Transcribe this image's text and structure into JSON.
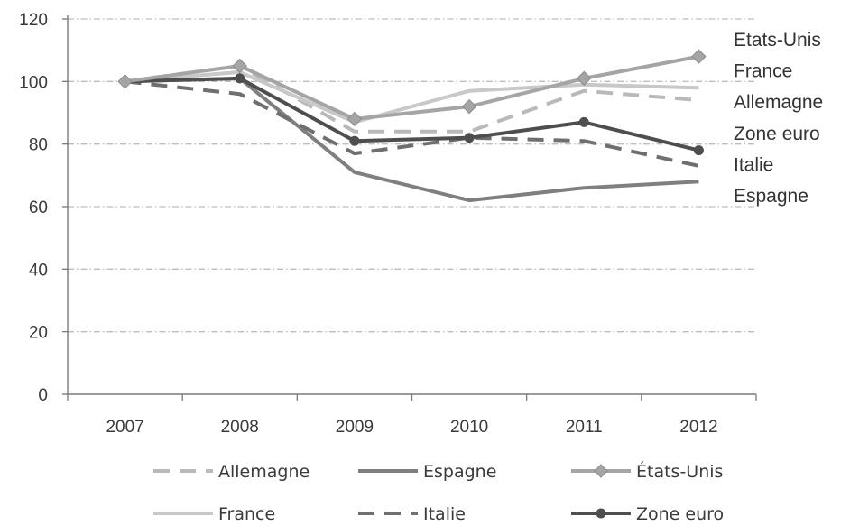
{
  "chart_data": {
    "type": "line",
    "title": "",
    "xlabel": "",
    "ylabel": "",
    "categories": [
      "2007",
      "2008",
      "2009",
      "2010",
      "2011",
      "2012"
    ],
    "ylim": [
      0,
      120
    ],
    "yticks": [
      0,
      20,
      40,
      60,
      80,
      100,
      120
    ],
    "grid": true,
    "legend_position": "bottom",
    "series": [
      {
        "name": "Allemagne",
        "values": [
          100,
          105,
          84,
          84,
          97,
          94
        ],
        "color": "#b9b9b9",
        "style": "dashed",
        "marker": "none"
      },
      {
        "name": "Espagne",
        "values": [
          100,
          101,
          71,
          62,
          66,
          68
        ],
        "color": "#7f7f7f",
        "style": "solid",
        "marker": "none"
      },
      {
        "name": "États-Unis",
        "values": [
          100,
          105,
          88,
          92,
          101,
          108
        ],
        "color": "#a5a5a5",
        "style": "solid",
        "marker": "diamond"
      },
      {
        "name": "France",
        "values": [
          100,
          103,
          87,
          97,
          99,
          98
        ],
        "color": "#c8c8c8",
        "style": "solid",
        "marker": "none"
      },
      {
        "name": "Italie",
        "values": [
          100,
          96,
          77,
          82,
          81,
          73
        ],
        "color": "#6f6f6f",
        "style": "dashed",
        "marker": "none"
      },
      {
        "name": "Zone euro",
        "values": [
          100,
          101,
          81,
          82,
          87,
          78
        ],
        "color": "#4e4e4e",
        "style": "solid",
        "marker": "circle"
      }
    ],
    "end_labels": [
      "Etats-Unis",
      "France",
      "Allemagne",
      "Zone euro",
      "Italie",
      "Espagne"
    ]
  }
}
